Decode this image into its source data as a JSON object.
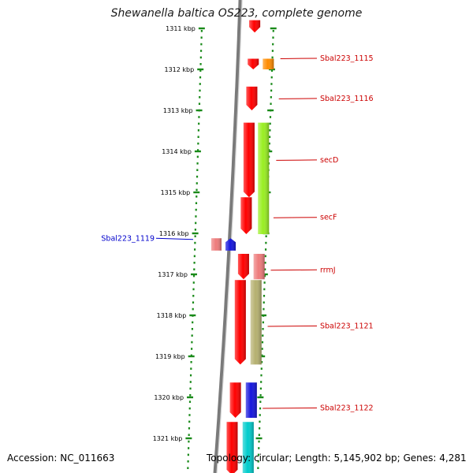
{
  "title": "Shewanella baltica OS223, complete genome",
  "footer": {
    "accession": "Accession: NC_011663",
    "summary": "Topology: circular; Length: 5,145,902 bp; Genes: 4,281"
  },
  "colors": {
    "forward_genes": "#ff0000",
    "tick": "#1a8a1a",
    "backbone": "#7a7a7a",
    "label_forward": "#cc0000",
    "label_reverse": "#0000cc"
  },
  "ruler": {
    "unit": "kbp",
    "ticks": [
      "1311 kbp",
      "1312 kbp",
      "1313 kbp",
      "1314 kbp",
      "1315 kbp",
      "1316 kbp",
      "1317 kbp",
      "1318 kbp",
      "1319 kbp",
      "1320 kbp",
      "1321 kbp"
    ]
  },
  "features": [
    {
      "track": "forward",
      "start_kbp": 1310.8,
      "end_kbp": 1311.1,
      "color": "#ff0000"
    },
    {
      "track": "forward",
      "start_kbp": 1311.74,
      "end_kbp": 1312.0,
      "color": "#ff0000"
    },
    {
      "track": "forward",
      "start_kbp": 1312.42,
      "end_kbp": 1313.0,
      "color": "#ff0000"
    },
    {
      "track": "forward",
      "start_kbp": 1313.3,
      "end_kbp": 1315.12,
      "color": "#ff0000"
    },
    {
      "track": "forward",
      "start_kbp": 1315.12,
      "end_kbp": 1316.02,
      "color": "#ff0000"
    },
    {
      "track": "forward",
      "start_kbp": 1316.5,
      "end_kbp": 1317.12,
      "color": "#ff0000"
    },
    {
      "track": "forward",
      "start_kbp": 1317.14,
      "end_kbp": 1319.2,
      "color": "#ff0000"
    },
    {
      "track": "forward",
      "start_kbp": 1319.64,
      "end_kbp": 1320.5,
      "color": "#ff0000"
    },
    {
      "track": "forward",
      "start_kbp": 1320.6,
      "end_kbp": 1321.9,
      "color": "#ff0000"
    },
    {
      "track": "gene",
      "start_kbp": 1311.74,
      "end_kbp": 1312.0,
      "color": "#ff8c00",
      "name": "Sbal223_1115"
    },
    {
      "track": "gene",
      "start_kbp": 1313.3,
      "end_kbp": 1316.02,
      "color": "#99ee22",
      "name": "secD/secF"
    },
    {
      "track": "gene",
      "start_kbp": 1316.5,
      "end_kbp": 1317.12,
      "color": "#ee7b7b",
      "name": "rrmJ"
    },
    {
      "track": "gene",
      "start_kbp": 1317.14,
      "end_kbp": 1319.2,
      "color": "#b5b070",
      "name": "Sbal223_1121"
    },
    {
      "track": "gene",
      "start_kbp": 1319.64,
      "end_kbp": 1320.5,
      "color": "#1515dd",
      "name": "Sbal223_1122"
    },
    {
      "track": "gene",
      "start_kbp": 1320.6,
      "end_kbp": 1321.9,
      "color": "#00cccc"
    },
    {
      "track": "reverse",
      "start_kbp": 1316.12,
      "end_kbp": 1316.42,
      "color": "#ee7b7b"
    },
    {
      "track": "reverse",
      "start_kbp": 1316.12,
      "end_kbp": 1316.42,
      "color": "#1515dd",
      "name": "Sbal223_1119"
    }
  ],
  "labels": [
    {
      "text": "Sbal223_1115",
      "kbp": 1311.72,
      "side": "right",
      "strand": "forward"
    },
    {
      "text": "Sbal223_1116",
      "kbp": 1312.7,
      "side": "right",
      "strand": "forward"
    },
    {
      "text": "secD",
      "kbp": 1314.2,
      "side": "right",
      "strand": "forward"
    },
    {
      "text": "secF",
      "kbp": 1315.6,
      "side": "right",
      "strand": "forward"
    },
    {
      "text": "rrmJ",
      "kbp": 1316.88,
      "side": "right",
      "strand": "forward"
    },
    {
      "text": "Sbal223_1121",
      "kbp": 1318.25,
      "side": "right",
      "strand": "forward"
    },
    {
      "text": "Sbal223_1122",
      "kbp": 1320.25,
      "side": "right",
      "strand": "forward"
    },
    {
      "text": "Sbal223_1119",
      "kbp": 1316.12,
      "side": "left",
      "strand": "reverse"
    }
  ]
}
